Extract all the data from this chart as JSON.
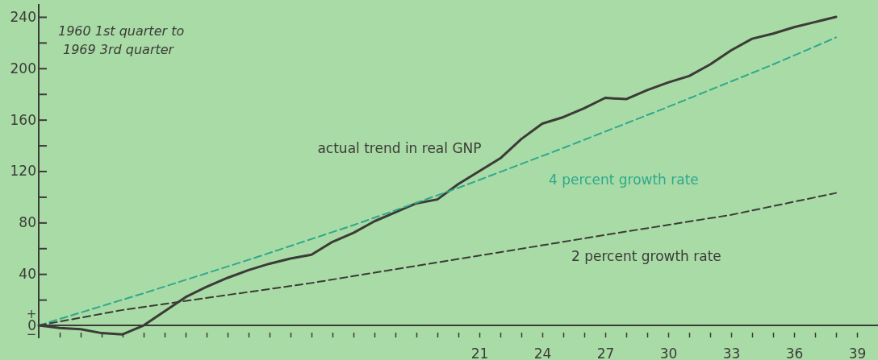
{
  "chart_data": {
    "type": "line",
    "xlim": [
      0,
      40
    ],
    "ylim": [
      -10,
      250
    ],
    "xticks": [
      {
        "value": 1,
        "label": null
      },
      {
        "value": 2,
        "label": null
      },
      {
        "value": 3,
        "label": null
      },
      {
        "value": 4,
        "label": null
      },
      {
        "value": 5,
        "label": null
      },
      {
        "value": 6,
        "label": null
      },
      {
        "value": 7,
        "label": null
      },
      {
        "value": 8,
        "label": null
      },
      {
        "value": 9,
        "label": null
      },
      {
        "value": 10,
        "label": null
      },
      {
        "value": 11,
        "label": null
      },
      {
        "value": 12,
        "label": null
      },
      {
        "value": 13,
        "label": null
      },
      {
        "value": 14,
        "label": null
      },
      {
        "value": 15,
        "label": null
      },
      {
        "value": 16,
        "label": null
      },
      {
        "value": 17,
        "label": null
      },
      {
        "value": 18,
        "label": null
      },
      {
        "value": 19,
        "label": null
      },
      {
        "value": 20,
        "label": null
      },
      21,
      {
        "value": 22,
        "label": null
      },
      {
        "value": 23,
        "label": null
      },
      24,
      {
        "value": 25,
        "label": null
      },
      {
        "value": 26,
        "label": null
      },
      27,
      {
        "value": 28,
        "label": null
      },
      {
        "value": 29,
        "label": null
      },
      30,
      {
        "value": 31,
        "label": null
      },
      {
        "value": 32,
        "label": null
      },
      33,
      {
        "value": 34,
        "label": null
      },
      {
        "value": 35,
        "label": null
      },
      36,
      {
        "value": 37,
        "label": null
      },
      {
        "value": 38,
        "label": null
      },
      39
    ],
    "yticks": [
      0,
      {
        "value": 20,
        "label": null
      },
      40,
      {
        "value": 60,
        "label": null
      },
      80,
      {
        "value": 100,
        "label": null
      },
      120,
      {
        "value": 140,
        "label": null
      },
      160,
      {
        "value": 180,
        "label": null
      },
      200,
      {
        "value": 220,
        "label": null
      },
      240
    ],
    "series": [
      {
        "name": "actual trend in real GNP",
        "color": "#3b3b37",
        "line_style": "solid",
        "x": [
          0,
          1,
          2,
          3,
          4,
          5,
          6,
          7,
          8,
          9,
          10,
          11,
          12,
          13,
          14,
          15,
          16,
          17,
          18,
          19,
          20,
          21,
          22,
          23,
          24,
          25,
          26,
          27,
          28,
          29,
          30,
          31,
          32,
          33,
          34,
          35,
          36,
          37,
          38
        ],
        "values": [
          0,
          -2,
          -3,
          -6,
          -7,
          0,
          11,
          22,
          30,
          37,
          43,
          48,
          52,
          55,
          65,
          72,
          81,
          88,
          95,
          98,
          110,
          120,
          130,
          145,
          157,
          162,
          169,
          177,
          176,
          183,
          189,
          194,
          203,
          214,
          223,
          227,
          232,
          236,
          240
        ]
      },
      {
        "name": "4 percent growth rate",
        "color": "#2fa88c",
        "line_style": "dashed",
        "x": [
          0,
          5,
          10,
          15,
          20,
          25,
          30,
          35,
          38
        ],
        "values": [
          0,
          25,
          51,
          78,
          107,
          138,
          170,
          203,
          224
        ]
      },
      {
        "name": "2 percent growth rate",
        "color": "#3b3b37",
        "line_style": "dashed",
        "x": [
          0,
          4,
          13,
          19,
          28,
          33,
          38
        ],
        "values": [
          0,
          12,
          33,
          49,
          73,
          86,
          103
        ]
      }
    ],
    "annotations": [
      "1960  1st quarter to\n1969  3rd quarter",
      "+",
      "−"
    ],
    "grid": false
  }
}
